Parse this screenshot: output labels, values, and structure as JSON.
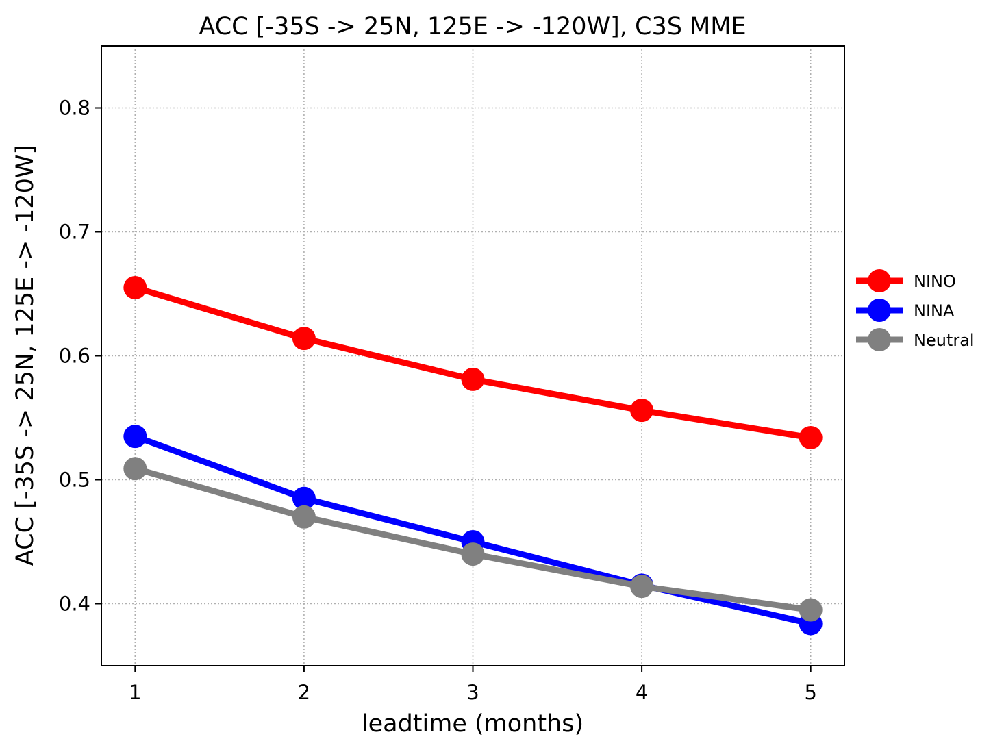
{
  "chart_data": {
    "type": "line",
    "title": "ACC [-35S -> 25N, 125E -> -120W], C3S MME",
    "xlabel": "leadtime (months)",
    "ylabel": "ACC [-35S -> 25N, 125E -> -120W]",
    "x": [
      1,
      2,
      3,
      4,
      5
    ],
    "x_tick_labels": [
      "1",
      "2",
      "3",
      "4",
      "5"
    ],
    "y_ticks": [
      0.4,
      0.5,
      0.6,
      0.7,
      0.8
    ],
    "y_tick_labels": [
      "0.4",
      "0.5",
      "0.6",
      "0.7",
      "0.8"
    ],
    "xlim": [
      0.8,
      5.2
    ],
    "ylim": [
      0.35,
      0.85
    ],
    "grid": true,
    "legend_position": "outside right",
    "series": [
      {
        "name": "NINO",
        "color": "#ff0000",
        "values": [
          0.655,
          0.614,
          0.581,
          0.556,
          0.534
        ]
      },
      {
        "name": "NINA",
        "color": "#0000ff",
        "values": [
          0.535,
          0.485,
          0.45,
          0.415,
          0.384
        ]
      },
      {
        "name": "Neutral",
        "color": "#808080",
        "values": [
          0.509,
          0.47,
          0.44,
          0.414,
          0.395
        ]
      }
    ]
  }
}
